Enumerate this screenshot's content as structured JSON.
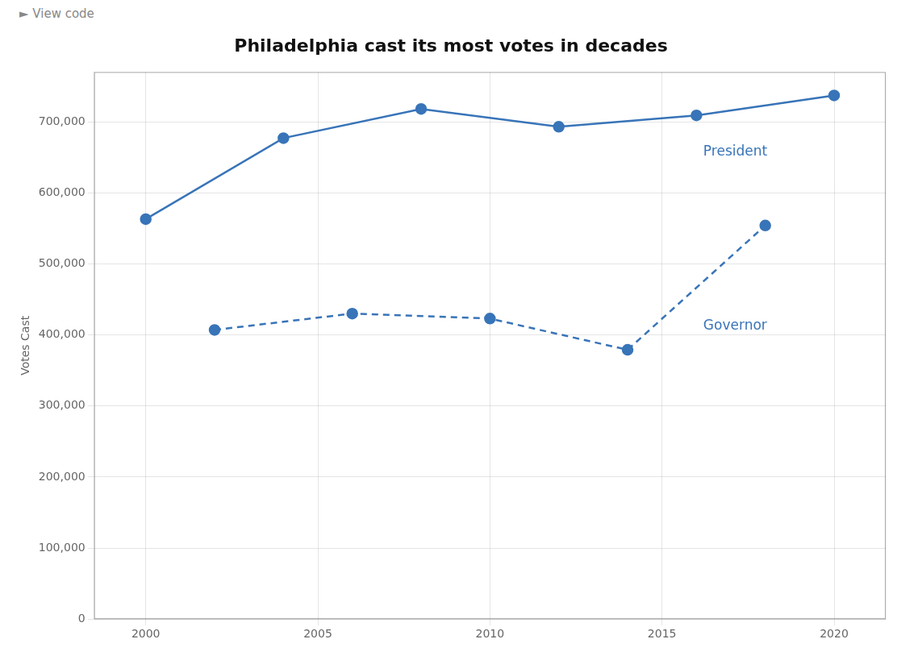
{
  "chart_data": {
    "type": "line",
    "title": "Philadelphia cast its most votes in decades",
    "header": "►  View code",
    "ylabel": "Votes Cast",
    "series": [
      {
        "name": "President",
        "color": "#3874b8",
        "line_style": "solid",
        "marker": "circle",
        "x": [
          2000,
          2004,
          2008,
          2012,
          2016,
          2020
        ],
        "values": [
          563000,
          677000,
          718000,
          693000,
          709000,
          737000
        ]
      },
      {
        "name": "Governor",
        "color": "#3874b8",
        "line_style": "dashed",
        "marker": "circle",
        "x": [
          2002,
          2006,
          2010,
          2014,
          2018
        ],
        "values": [
          407000,
          430000,
          423000,
          379000,
          554000
        ]
      }
    ],
    "annotations": [
      {
        "text": "President",
        "x": 2016.2,
        "y": 658000
      },
      {
        "text": "Governor",
        "x": 2016.2,
        "y": 413000
      }
    ],
    "xlim": [
      1998.5,
      2021.5
    ],
    "ylim": [
      0,
      770000
    ],
    "xticks": [
      2000,
      2005,
      2010,
      2015,
      2020
    ],
    "yticks": [
      0,
      {
        "value": 100000,
        "label": "100,000"
      },
      {
        "value": 200000,
        "label": "200,000"
      },
      {
        "value": 300000,
        "label": "300,000"
      },
      {
        "value": 400000,
        "label": "400,000"
      },
      {
        "value": 500000,
        "label": "500,000"
      },
      {
        "value": 600000,
        "label": "600,000"
      },
      {
        "value": 700000,
        "label": "700,000"
      }
    ],
    "grid": true
  }
}
